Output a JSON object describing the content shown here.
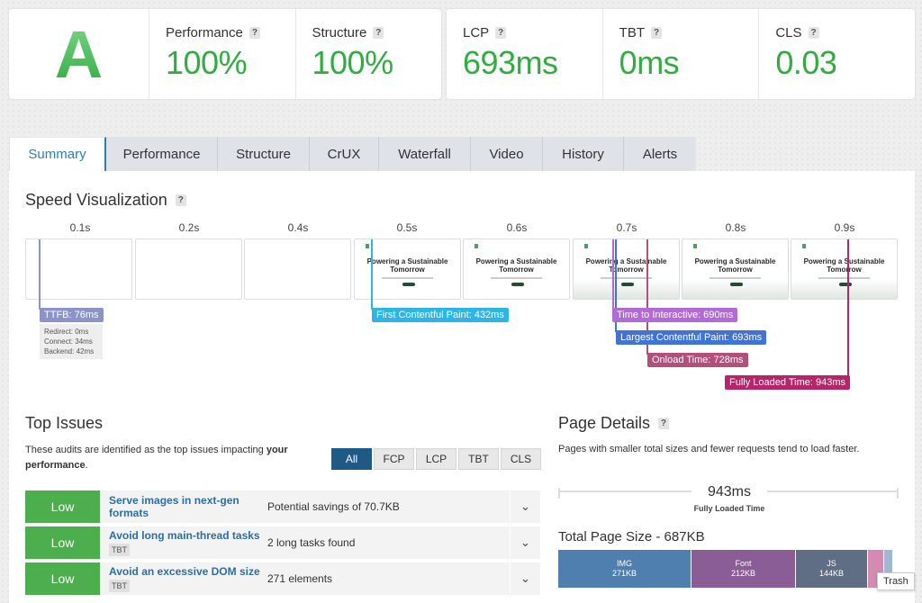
{
  "grade": {
    "letter": "A"
  },
  "scores": [
    {
      "label": "Performance",
      "value": "100%"
    },
    {
      "label": "Structure",
      "value": "100%"
    }
  ],
  "vitals": [
    {
      "label": "LCP",
      "value": "693ms"
    },
    {
      "label": "TBT",
      "value": "0ms"
    },
    {
      "label": "CLS",
      "value": "0.03"
    }
  ],
  "help_glyph": "?",
  "tabs": [
    "Summary",
    "Performance",
    "Structure",
    "CrUX",
    "Waterfall",
    "Video",
    "History",
    "Alerts"
  ],
  "speed": {
    "title": "Speed Visualization",
    "times": [
      "0.1s",
      "0.2s",
      "0.4s",
      "0.5s",
      "0.6s",
      "0.7s",
      "0.8s",
      "0.9s"
    ],
    "frame_title": "Powering a Sustainable Tomorrow",
    "ttfb": {
      "label": "TTFB: 76ms",
      "redirect": "Redirect: 0ms",
      "connect": "Connect: 34ms",
      "backend": "Backend: 42ms"
    },
    "markers": {
      "fcp": "First Contentful Paint: 432ms",
      "tti": "Time to Interactive: 690ms",
      "lcp": "Largest Contentful Paint: 693ms",
      "onload": "Onload Time: 728ms",
      "fully": "Fully Loaded Time: 943ms"
    },
    "colors": {
      "ttfb": "#8b94c8",
      "fcp": "#2db5e6",
      "tti": "#b26bd6",
      "lcp": "#3f73d6",
      "onload": "#b24f7a",
      "fully": "#b8246a"
    }
  },
  "issues": {
    "title": "Top Issues",
    "desc_prefix": "These audits are identified as the top issues impacting ",
    "desc_bold": "your performance",
    "desc_suffix": ".",
    "filters": [
      "All",
      "FCP",
      "LCP",
      "TBT",
      "CLS"
    ],
    "rows": [
      {
        "severity": "Low",
        "title": "Serve images in next-gen formats",
        "tag": "",
        "summary": "Potential savings of 70.7KB"
      },
      {
        "severity": "Low",
        "title": "Avoid long main-thread tasks",
        "tag": "TBT",
        "summary": "2 long tasks found"
      },
      {
        "severity": "Low",
        "title": "Avoid an excessive DOM size",
        "tag": "TBT",
        "summary": "271 elements"
      }
    ]
  },
  "page_details": {
    "title": "Page Details",
    "desc": "Pages with smaller total sizes and fewer requests tend to load faster.",
    "fully_loaded_value": "943ms",
    "fully_loaded_label": "Fully Loaded Time",
    "size_title": "Total Page Size - 687KB",
    "segments": [
      {
        "name": "IMG",
        "size": "271KB",
        "color": "#4f7fae"
      },
      {
        "name": "Font",
        "size": "212KB",
        "color": "#8a5d96"
      },
      {
        "name": "JS",
        "size": "144KB",
        "color": "#5f6d85"
      }
    ],
    "tooltip": "Trash"
  }
}
